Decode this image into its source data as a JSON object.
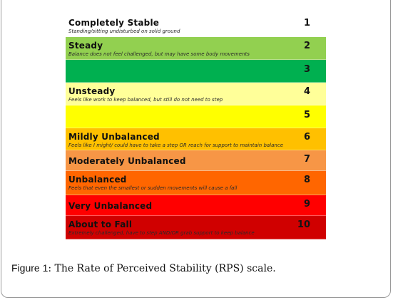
{
  "scale": {
    "rows": [
      {
        "number": "1",
        "label": "Completely Stable",
        "description": "Standing/sitting undisturbed on solid ground",
        "color": "#ffffff",
        "height": 32
      },
      {
        "number": "2",
        "label": "Steady",
        "description": "Balance does not feel challenged,  but  may have some body movements",
        "color": "#92d050",
        "height": 32
      },
      {
        "number": "3",
        "label": "",
        "description": "",
        "color": "#00b050",
        "height": 32
      },
      {
        "number": "4",
        "label": "Unsteady",
        "description": "Feels like work to keep balanced, but still do not need to step",
        "color": "#ffff99",
        "height": 32
      },
      {
        "number": "5",
        "label": "",
        "description": "",
        "color": "#ffff00",
        "height": 32
      },
      {
        "number": "6",
        "label": "Mildly Unbalanced",
        "description": "Feels like I might/ could have to take a step OR reach for support to maintain balance",
        "color": "#ffc000",
        "height": 31
      },
      {
        "number": "7",
        "label": "Moderately Unbalanced",
        "description": "",
        "color": "#f79646",
        "height": 29
      },
      {
        "number": "8",
        "label": "Unbalanced",
        "description": "Feels that even the smallest or sudden movements will cause a fall",
        "color": "#ff6600",
        "height": 34
      },
      {
        "number": "9",
        "label": "Very Unbalanced",
        "description": "",
        "color": "#ff0000",
        "height": 29
      },
      {
        "number": "10",
        "label": "About to Fall",
        "description": "Extremely challenged, have to step AND/OR grab support to keep balance",
        "color": "#d00000",
        "height": 33
      }
    ]
  },
  "caption": {
    "figure_label": "Figure 1",
    "text": ": The Rate of Perceived Stability (RPS) scale."
  }
}
